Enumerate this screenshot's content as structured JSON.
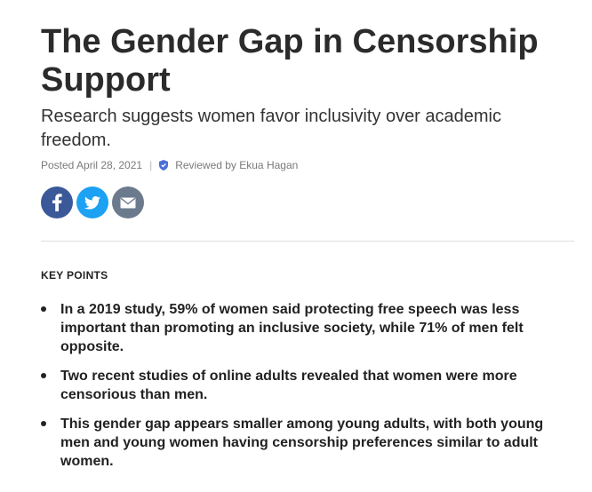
{
  "article": {
    "title": "The Gender Gap in Censorship Support",
    "subtitle": "Research suggests women favor inclusivity over academic freedom.",
    "posted": "Posted April 28, 2021",
    "separator": "|",
    "reviewed": "Reviewed by Ekua Hagan"
  },
  "share": {
    "icons": [
      "facebook-icon",
      "twitter-icon",
      "email-icon"
    ],
    "colors": {
      "facebook": "#3b5998",
      "twitter": "#1da1f2",
      "email": "#6b7a8c"
    }
  },
  "key_points": {
    "heading": "KEY POINTS",
    "items": [
      {
        "text": "In a 2019 study, 59% of women said protecting free speech was less important than promoting an inclusive society, while 71% of men felt opposite."
      },
      {
        "text": "Two recent studies of online adults revealed that women were more censorious than men."
      },
      {
        "text": "This gender gap appears smaller among young adults, with both young men and young women having censorship preferences similar to adult women."
      }
    ]
  }
}
